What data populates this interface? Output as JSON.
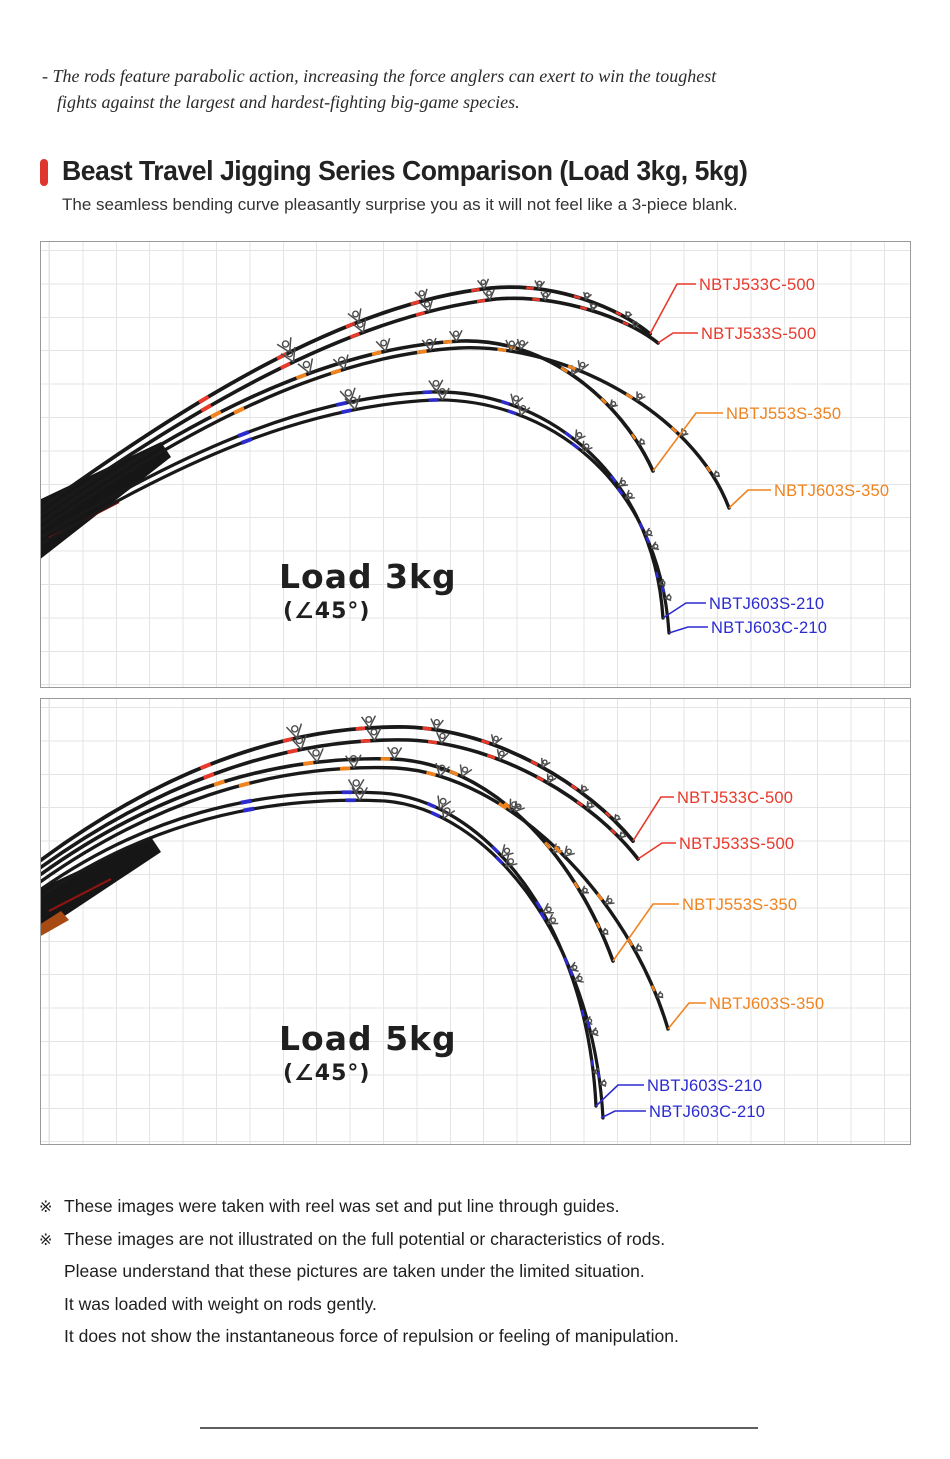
{
  "intro": {
    "line1": "- The rods feature parabolic action, increasing the force anglers can exert to win the toughest",
    "line2": "fights against the largest and hardest-fighting big-game species."
  },
  "header": {
    "title": "Beast Travel Jigging Series Comparison (Load 3kg, 5kg)",
    "subtitle": "The seamless bending curve pleasantly surprise you as it will not feel like a 3-piece blank.",
    "accent_color": "#e0352f"
  },
  "panels": [
    {
      "load_label": "Load 3kg",
      "angle_label": "(∠45°)",
      "rods": [
        {
          "model": "NBTJ533C-500",
          "color": "#e8392b"
        },
        {
          "model": "NBTJ533S-500",
          "color": "#e8392b"
        },
        {
          "model": "NBTJ553S-350",
          "color": "#f0831e"
        },
        {
          "model": "NBTJ603S-350",
          "color": "#f0831e"
        },
        {
          "model": "NBTJ603S-210",
          "color": "#2b2bd0"
        },
        {
          "model": "NBTJ603C-210",
          "color": "#2b2bd0"
        }
      ]
    },
    {
      "load_label": "Load 5kg",
      "angle_label": "(∠45°)",
      "rods": [
        {
          "model": "NBTJ533C-500",
          "color": "#e8392b"
        },
        {
          "model": "NBTJ533S-500",
          "color": "#e8392b"
        },
        {
          "model": "NBTJ553S-350",
          "color": "#f0831e"
        },
        {
          "model": "NBTJ603S-350",
          "color": "#f0831e"
        },
        {
          "model": "NBTJ603S-210",
          "color": "#2b2bd0"
        },
        {
          "model": "NBTJ603C-210",
          "color": "#2b2bd0"
        }
      ]
    }
  ],
  "footnotes": [
    {
      "marker": "※",
      "text": "These images were taken with reel was set and put line through guides."
    },
    {
      "marker": "※",
      "text": "These images are not illustrated on the full potential or characteristics of rods."
    },
    {
      "marker": "",
      "text": "Please understand that these pictures are taken under the limited situation."
    },
    {
      "marker": "",
      "text": "It was loaded with weight on rods gently."
    },
    {
      "marker": "",
      "text": "It does not show the instantaneous force of repulsion or feeling of manipulation."
    }
  ]
}
